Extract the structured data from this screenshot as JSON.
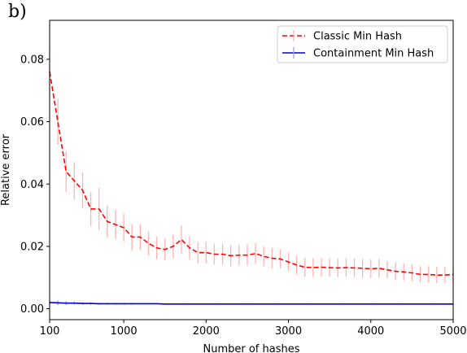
{
  "panel_label": "b)",
  "chart_data": {
    "type": "line",
    "title": "",
    "xlabel": "Number of hashes",
    "ylabel": "Relative error",
    "xlim": [
      100,
      5000
    ],
    "ylim": [
      -0.0035,
      0.0925
    ],
    "xticks": [
      100,
      1000,
      2000,
      3000,
      4000,
      5000
    ],
    "yticks": [
      0.0,
      0.02,
      0.04,
      0.06,
      0.08
    ],
    "xtick_labels": [
      "100",
      "1000",
      "2000",
      "3000",
      "4000",
      "5000"
    ],
    "ytick_labels": [
      "0.00",
      "0.02",
      "0.04",
      "0.06",
      "0.08"
    ],
    "grid": false,
    "legend_position": "top-right",
    "series": [
      {
        "name": "Classic Min Hash",
        "color": "#ff0000",
        "error_color": "#ffb3b3",
        "style": "dashed",
        "x": [
          100,
          200,
          300,
          400,
          500,
          600,
          700,
          800,
          900,
          1000,
          1100,
          1200,
          1300,
          1400,
          1500,
          1600,
          1700,
          1800,
          1900,
          2000,
          2100,
          2200,
          2300,
          2400,
          2500,
          2600,
          2700,
          2800,
          2900,
          3000,
          3100,
          3200,
          3300,
          3400,
          3500,
          3600,
          3700,
          3800,
          3900,
          4000,
          4100,
          4200,
          4300,
          4400,
          4500,
          4600,
          4700,
          4800,
          4900,
          5000
        ],
        "y": [
          0.076,
          0.06,
          0.044,
          0.041,
          0.038,
          0.032,
          0.032,
          0.028,
          0.027,
          0.026,
          0.023,
          0.023,
          0.021,
          0.0195,
          0.019,
          0.02,
          0.0222,
          0.0195,
          0.018,
          0.018,
          0.0175,
          0.0175,
          0.017,
          0.0172,
          0.0172,
          0.0177,
          0.0168,
          0.0162,
          0.016,
          0.015,
          0.014,
          0.0133,
          0.0132,
          0.0133,
          0.0132,
          0.0131,
          0.0132,
          0.0131,
          0.013,
          0.0128,
          0.013,
          0.0125,
          0.012,
          0.0118,
          0.0115,
          0.011,
          0.011,
          0.0108,
          0.0108,
          0.011
        ],
        "error": [
          0.008,
          0.0075,
          0.0065,
          0.006,
          0.0058,
          0.0055,
          0.0068,
          0.0052,
          0.0048,
          0.0045,
          0.0042,
          0.0042,
          0.0038,
          0.0036,
          0.0035,
          0.0038,
          0.0045,
          0.0038,
          0.0035,
          0.0035,
          0.0034,
          0.0034,
          0.0034,
          0.0034,
          0.0034,
          0.0034,
          0.0032,
          0.0032,
          0.003,
          0.003,
          0.003,
          0.003,
          0.003,
          0.003,
          0.003,
          0.003,
          0.003,
          0.003,
          0.003,
          0.003,
          0.003,
          0.0028,
          0.0028,
          0.0028,
          0.0026,
          0.0026,
          0.0026,
          0.0026,
          0.0026,
          0.0026
        ]
      },
      {
        "name": "Containment Min Hash",
        "color": "#0000cc",
        "error_color": "#9999ff",
        "style": "solid",
        "x": [
          100,
          200,
          300,
          400,
          500,
          600,
          700,
          800,
          900,
          1000,
          1100,
          1200,
          1300,
          1400,
          1500,
          1600,
          1700,
          1800,
          1900,
          2000,
          2100,
          2200,
          2300,
          2400,
          2500,
          2600,
          2700,
          2800,
          2900,
          3000,
          3100,
          3200,
          3300,
          3400,
          3500,
          3600,
          3700,
          3800,
          3900,
          4000,
          4100,
          4200,
          4300,
          4400,
          4500,
          4600,
          4700,
          4800,
          4900,
          5000
        ],
        "y": [
          0.002,
          0.0019,
          0.0018,
          0.0018,
          0.0017,
          0.0017,
          0.0016,
          0.0016,
          0.0016,
          0.0016,
          0.0016,
          0.0016,
          0.0016,
          0.0016,
          0.0015,
          0.0015,
          0.0015,
          0.0015,
          0.0015,
          0.0015,
          0.0015,
          0.0015,
          0.0015,
          0.0015,
          0.0015,
          0.0015,
          0.0015,
          0.0015,
          0.0015,
          0.0015,
          0.0015,
          0.0015,
          0.0015,
          0.0015,
          0.0015,
          0.0015,
          0.0015,
          0.0015,
          0.0015,
          0.0015,
          0.0015,
          0.0015,
          0.0015,
          0.0015,
          0.0015,
          0.0015,
          0.0015,
          0.0015,
          0.0015,
          0.0015
        ],
        "error": [
          0.0008,
          0.0007,
          0.0006,
          0.0005,
          0.0004,
          0.0004,
          0.0003,
          0.0003,
          0.0003,
          0.0003,
          0.0003,
          0.0002,
          0.0002,
          0.0002,
          0.0002,
          0.0002,
          0.0002,
          0.0002,
          0.0002,
          0.0002,
          0.0002,
          0.0002,
          0.0002,
          0.0002,
          0.0002,
          0.0002,
          0.0002,
          0.0002,
          0.0002,
          0.0002,
          0.0002,
          0.0002,
          0.0002,
          0.0002,
          0.0002,
          0.0002,
          0.0002,
          0.0002,
          0.0002,
          0.0002,
          0.0002,
          0.0002,
          0.0002,
          0.0002,
          0.0002,
          0.0002,
          0.0002,
          0.0002,
          0.0002,
          0.0002
        ]
      }
    ]
  }
}
